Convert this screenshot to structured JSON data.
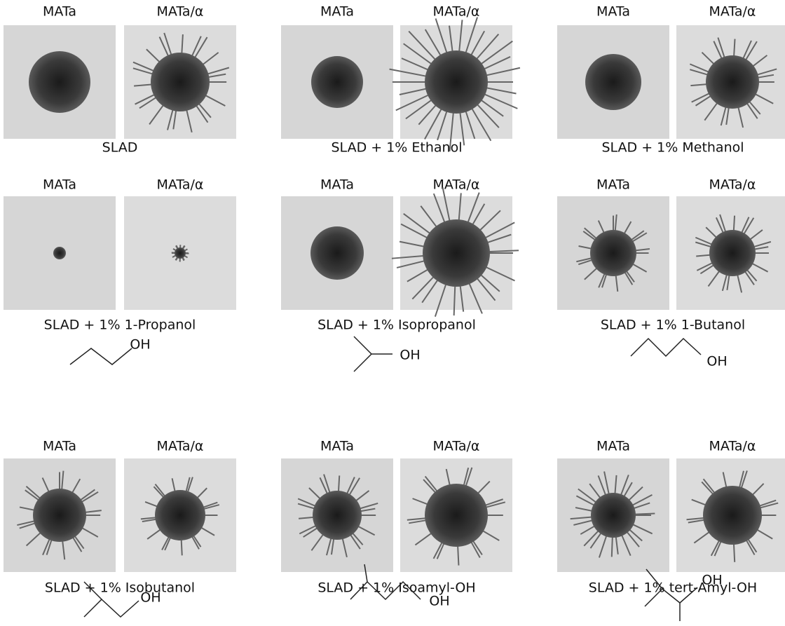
{
  "panels": [
    {
      "labels": [
        "MATa",
        "MATa/α"
      ],
      "caption": "SLAD"
    },
    {
      "labels": [
        "MATa",
        "MATa/α"
      ],
      "caption": "SLAD + 1% Ethanol"
    },
    {
      "labels": [
        "MATa",
        "MATa/α"
      ],
      "caption": "SLAD + 1% Methanol"
    },
    {
      "labels": [
        "MATa",
        "MATa/α"
      ],
      "caption": "SLAD + 1% 1-Propanol",
      "structure_label": "OH"
    },
    {
      "labels": [
        "MATa",
        "MATa/α"
      ],
      "caption": "SLAD + 1% Isopropanol",
      "structure_label": "OH"
    },
    {
      "labels": [
        "MATa",
        "MATa/α"
      ],
      "caption": "SLAD + 1% 1-Butanol",
      "structure_label": "OH"
    },
    {
      "labels": [
        "MATa",
        "MATa/α"
      ],
      "caption": "SLAD + 1% Isobutanol",
      "structure_label": "OH"
    },
    {
      "labels": [
        "MATa",
        "MATa/α"
      ],
      "caption": "SLAD + 1% Isoamyl-OH",
      "structure_label": "OH"
    },
    {
      "labels": [
        "MATa",
        "MATa/α"
      ],
      "caption": "SLAD + 1% tert-Amyl-OH",
      "structure_label": "OH"
    }
  ]
}
